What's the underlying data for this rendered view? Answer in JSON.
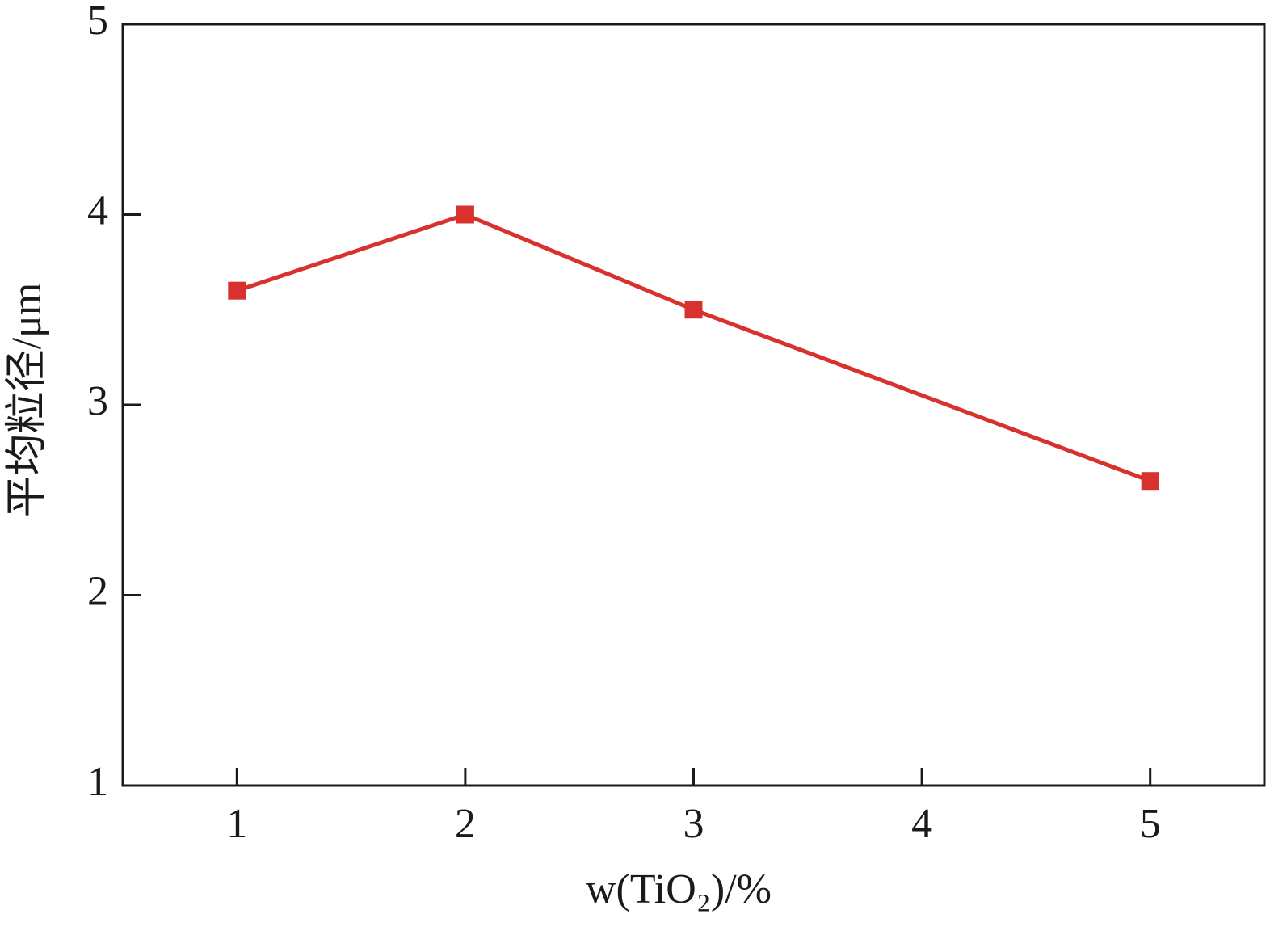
{
  "chart_data": {
    "type": "line",
    "x_label": "w(TiO₂)/%",
    "y_label": "平均粒径/μm",
    "x": [
      1,
      2,
      3,
      5
    ],
    "series": [
      {
        "color": "#d7322e",
        "values": [
          3.6,
          4.0,
          3.5,
          2.6
        ]
      }
    ],
    "xlim": [
      0.5,
      5.5
    ],
    "xticks": [
      1,
      2,
      3,
      4,
      5
    ],
    "ylim": [
      1,
      5
    ],
    "yticks": [
      1,
      2,
      3,
      4,
      5
    ]
  }
}
